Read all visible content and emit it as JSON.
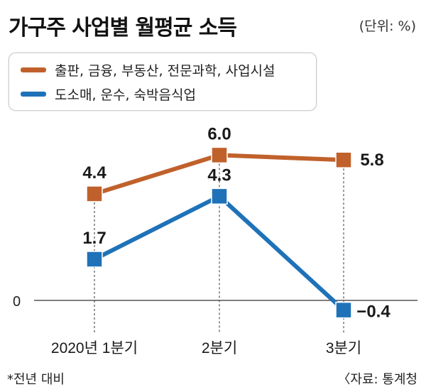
{
  "header": {
    "title": "가구주 사업별 월평균 소득",
    "unit": "(단위: %)"
  },
  "footer": {
    "note": "*전년 대비",
    "source": "〈자료: 통계청"
  },
  "colors": {
    "series0": "#c0612b",
    "series1": "#1f72b8",
    "axis": "#333333",
    "guide": "#555555"
  },
  "chart_data": {
    "type": "line",
    "title": "가구주 사업별 월평균 소득",
    "unit": "(단위: %)",
    "categories": [
      "2020년 1분기",
      "2분기",
      "3분기"
    ],
    "yzero_label": "0",
    "series": [
      {
        "name": "출판, 금융, 부동산, 전문과학, 사업시설",
        "values": [
          4.4,
          6.0,
          5.8
        ],
        "labels": [
          "4.4",
          "6.0",
          "5.8"
        ]
      },
      {
        "name": "도소매, 운수, 숙박음식업",
        "values": [
          1.7,
          4.3,
          -0.4
        ],
        "labels": [
          "1.7",
          "4.3",
          "−0.4"
        ]
      }
    ],
    "legend_position": "top-left",
    "grid": false
  }
}
